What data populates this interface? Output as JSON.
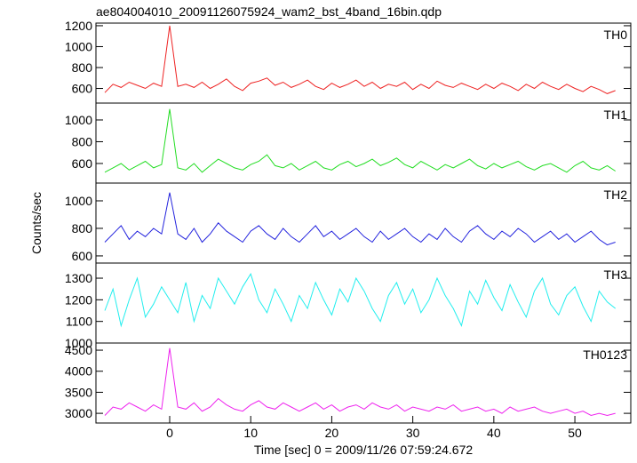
{
  "chart_data": [
    {
      "type": "line",
      "title": "ae804004010_20091126075924_wam2_bst_4band_16bin.qdp",
      "xlim": [
        -9.1,
        56.9
      ],
      "ylim": [
        460,
        1225
      ],
      "yticks": [
        600,
        800,
        1000,
        1200
      ],
      "x": [
        -8,
        -7,
        -6,
        -5,
        -4,
        -3,
        -2,
        -1,
        0,
        1,
        2,
        3,
        4,
        5,
        6,
        7,
        8,
        9,
        10,
        11,
        12,
        13,
        14,
        15,
        16,
        17,
        18,
        19,
        20,
        21,
        22,
        23,
        24,
        25,
        26,
        27,
        28,
        29,
        30,
        31,
        32,
        33,
        34,
        35,
        36,
        37,
        38,
        39,
        40,
        41,
        42,
        43,
        44,
        45,
        46,
        47,
        48,
        49,
        50,
        51,
        52,
        53,
        54,
        55
      ],
      "series": [
        {
          "name": "TH0",
          "color": "#ee2222",
          "values": [
            560,
            640,
            610,
            660,
            630,
            600,
            650,
            620,
            1200,
            620,
            640,
            610,
            660,
            600,
            640,
            690,
            620,
            580,
            650,
            670,
            700,
            630,
            660,
            610,
            640,
            680,
            620,
            590,
            650,
            610,
            640,
            680,
            620,
            660,
            600,
            640,
            620,
            660,
            590,
            640,
            600,
            670,
            630,
            610,
            650,
            620,
            590,
            640,
            600,
            650,
            620,
            580,
            640,
            600,
            660,
            620,
            590,
            640,
            600,
            570,
            620,
            590,
            550,
            580
          ]
        }
      ]
    },
    {
      "type": "line",
      "xlim": [
        -9.1,
        56.9
      ],
      "ylim": [
        420,
        1155
      ],
      "yticks": [
        600,
        800,
        1000
      ],
      "x": [
        -8,
        -7,
        -6,
        -5,
        -4,
        -3,
        -2,
        -1,
        0,
        1,
        2,
        3,
        4,
        5,
        6,
        7,
        8,
        9,
        10,
        11,
        12,
        13,
        14,
        15,
        16,
        17,
        18,
        19,
        20,
        21,
        22,
        23,
        24,
        25,
        26,
        27,
        28,
        29,
        30,
        31,
        32,
        33,
        34,
        35,
        36,
        37,
        38,
        39,
        40,
        41,
        42,
        43,
        44,
        45,
        46,
        47,
        48,
        49,
        50,
        51,
        52,
        53,
        54,
        55
      ],
      "series": [
        {
          "name": "TH1",
          "color": "#22dd22",
          "values": [
            520,
            560,
            600,
            540,
            580,
            620,
            560,
            590,
            1100,
            560,
            540,
            600,
            520,
            580,
            640,
            600,
            560,
            540,
            590,
            620,
            680,
            580,
            560,
            600,
            540,
            580,
            620,
            560,
            540,
            590,
            620,
            570,
            600,
            640,
            580,
            610,
            650,
            590,
            560,
            620,
            580,
            540,
            590,
            560,
            600,
            640,
            580,
            550,
            600,
            560,
            590,
            620,
            570,
            540,
            580,
            600,
            560,
            520,
            580,
            620,
            560,
            540,
            580,
            530
          ]
        }
      ]
    },
    {
      "type": "line",
      "ylabel": "Counts/sec",
      "xlim": [
        -9.1,
        56.9
      ],
      "ylim": [
        548,
        1129
      ],
      "yticks": [
        600,
        800,
        1000
      ],
      "x": [
        -8,
        -7,
        -6,
        -5,
        -4,
        -3,
        -2,
        -1,
        0,
        1,
        2,
        3,
        4,
        5,
        6,
        7,
        8,
        9,
        10,
        11,
        12,
        13,
        14,
        15,
        16,
        17,
        18,
        19,
        20,
        21,
        22,
        23,
        24,
        25,
        26,
        27,
        28,
        29,
        30,
        31,
        32,
        33,
        34,
        35,
        36,
        37,
        38,
        39,
        40,
        41,
        42,
        43,
        44,
        45,
        46,
        47,
        48,
        49,
        50,
        51,
        52,
        53,
        54,
        55
      ],
      "series": [
        {
          "name": "TH2",
          "color": "#2222dd",
          "values": [
            700,
            760,
            820,
            720,
            780,
            740,
            800,
            760,
            1060,
            760,
            720,
            800,
            700,
            760,
            840,
            780,
            740,
            700,
            780,
            820,
            760,
            720,
            800,
            740,
            700,
            760,
            820,
            740,
            780,
            720,
            760,
            800,
            740,
            700,
            780,
            720,
            760,
            800,
            740,
            700,
            760,
            720,
            800,
            740,
            700,
            780,
            820,
            760,
            720,
            780,
            740,
            800,
            760,
            700,
            740,
            780,
            720,
            760,
            700,
            740,
            780,
            720,
            680,
            700
          ]
        }
      ]
    },
    {
      "type": "line",
      "xlim": [
        -9.1,
        56.9
      ],
      "ylim": [
        1000,
        1370
      ],
      "yticks": [
        1000,
        1100,
        1200,
        1300
      ],
      "x": [
        -8,
        -7,
        -6,
        -5,
        -4,
        -3,
        -2,
        -1,
        0,
        1,
        2,
        3,
        4,
        5,
        6,
        7,
        8,
        9,
        10,
        11,
        12,
        13,
        14,
        15,
        16,
        17,
        18,
        19,
        20,
        21,
        22,
        23,
        24,
        25,
        26,
        27,
        28,
        29,
        30,
        31,
        32,
        33,
        34,
        35,
        36,
        37,
        38,
        39,
        40,
        41,
        42,
        43,
        44,
        45,
        46,
        47,
        48,
        49,
        50,
        51,
        52,
        53,
        54,
        55
      ],
      "series": [
        {
          "name": "TH3",
          "color": "#22eeee",
          "values": [
            1150,
            1250,
            1080,
            1200,
            1300,
            1120,
            1180,
            1260,
            1200,
            1140,
            1280,
            1100,
            1220,
            1160,
            1300,
            1240,
            1180,
            1260,
            1320,
            1200,
            1140,
            1250,
            1180,
            1100,
            1220,
            1160,
            1280,
            1200,
            1130,
            1250,
            1190,
            1300,
            1240,
            1160,
            1100,
            1220,
            1280,
            1180,
            1250,
            1140,
            1200,
            1300,
            1220,
            1160,
            1080,
            1240,
            1180,
            1290,
            1210,
            1150,
            1270,
            1190,
            1120,
            1240,
            1300,
            1180,
            1130,
            1220,
            1260,
            1170,
            1100,
            1240,
            1190,
            1160
          ]
        }
      ]
    },
    {
      "type": "line",
      "xlabel": "Time [sec] 0 = 2009/11/26 07:59:24.672",
      "xlim": [
        -9.1,
        56.9
      ],
      "xticks": [
        0,
        10,
        20,
        30,
        40,
        50
      ],
      "ylim": [
        2770,
        4670
      ],
      "yticks": [
        3000,
        3500,
        4000,
        4500
      ],
      "x": [
        -8,
        -7,
        -6,
        -5,
        -4,
        -3,
        -2,
        -1,
        0,
        1,
        2,
        3,
        4,
        5,
        6,
        7,
        8,
        9,
        10,
        11,
        12,
        13,
        14,
        15,
        16,
        17,
        18,
        19,
        20,
        21,
        22,
        23,
        24,
        25,
        26,
        27,
        28,
        29,
        30,
        31,
        32,
        33,
        34,
        35,
        36,
        37,
        38,
        39,
        40,
        41,
        42,
        43,
        44,
        45,
        46,
        47,
        48,
        49,
        50,
        51,
        52,
        53,
        54,
        55
      ],
      "series": [
        {
          "name": "TH0123",
          "color": "#ee22ee",
          "values": [
            2950,
            3150,
            3100,
            3250,
            3150,
            3050,
            3200,
            3100,
            4550,
            3150,
            3100,
            3250,
            3050,
            3150,
            3350,
            3200,
            3100,
            3050,
            3200,
            3300,
            3150,
            3100,
            3250,
            3150,
            3050,
            3150,
            3250,
            3100,
            3200,
            3050,
            3150,
            3200,
            3100,
            3250,
            3150,
            3100,
            3200,
            3050,
            3150,
            3100,
            3050,
            3150,
            3100,
            3200,
            3050,
            3100,
            3150,
            3050,
            3100,
            3000,
            3150,
            3050,
            3100,
            3150,
            3050,
            3000,
            3050,
            3100,
            3000,
            3050,
            2950,
            3000,
            2950,
            3000
          ]
        }
      ]
    }
  ]
}
